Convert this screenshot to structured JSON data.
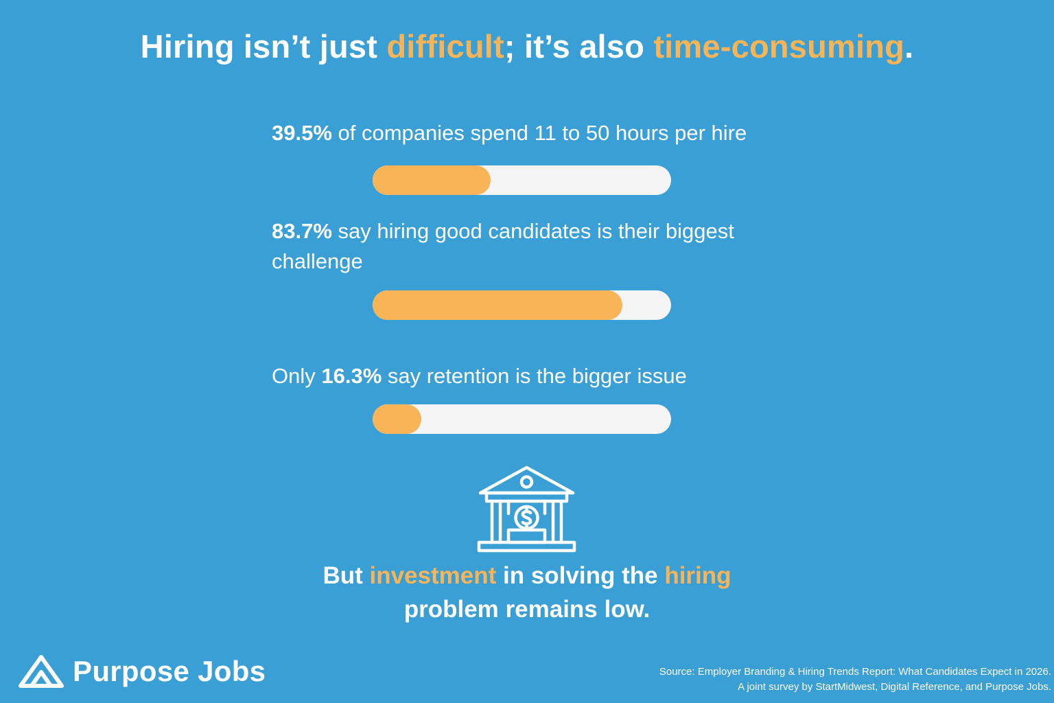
{
  "title": {
    "part1": "Hiring isn’t just ",
    "accent1": "difficult",
    "part2": "; it’s also ",
    "accent2": "time-consuming",
    "part3": "."
  },
  "stats": [
    {
      "prefix": "",
      "value": "39.5%",
      "suffix": " of companies spend 11 to 50 hours per hire",
      "fill_percent": 39.5
    },
    {
      "prefix": "",
      "value": "83.7%",
      "suffix": " say hiring good candidates is their biggest challenge",
      "fill_percent": 83.7
    },
    {
      "prefix": "Only ",
      "value": "16.3%",
      "suffix": " say retention is the bigger issue",
      "fill_percent": 16.3
    }
  ],
  "icon": "bank-dollar-icon",
  "closing": {
    "part1": "But ",
    "accent1": "investment",
    "part2": " in solving the ",
    "accent2": "hiring",
    "part3": " problem remains low."
  },
  "brand": {
    "name": "Purpose Jobs",
    "logo_icon": "mountain-logo-icon"
  },
  "source": {
    "line1": "Source: Employer Branding & Hiring Trends Report: What Candidates Expect in 2026.",
    "line2": "A joint survey by StartMidwest, Digital Reference, and Purpose Jobs."
  },
  "colors": {
    "background": "#3a9fd5",
    "accent": "#f9b457",
    "track": "#f5f5f5",
    "text": "#ffffff"
  }
}
